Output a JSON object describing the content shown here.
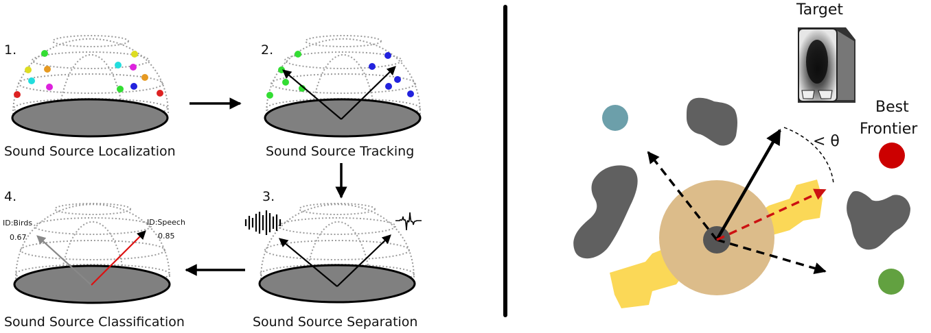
{
  "left_panel": {
    "step1": {
      "number": "1.",
      "caption": "Sound Source Localization"
    },
    "step2": {
      "number": "2.",
      "caption": "Sound Source Tracking"
    },
    "step3": {
      "number": "3.",
      "caption": "Sound Source Separation"
    },
    "step4": {
      "number": "4.",
      "caption": "Sound Source Classification",
      "label_birds": "ID:Birds",
      "value_birds": "0.67",
      "label_speech": "ID:Speech",
      "value_speech": "0.85"
    }
  },
  "right_panel": {
    "target_label": "Target",
    "frontier_label_line1": "Best",
    "frontier_label_line2": "Frontier",
    "angle_label": "< θ"
  },
  "colors": {
    "dome_disc": "#808080",
    "obstacle": "#606060",
    "robot_base": "#dcbc8a",
    "robot_arm": "#fbd857",
    "frontier_red": "#cc0000",
    "frontier_blue": "#6c9faa",
    "frontier_green": "#62a140",
    "arrow_red": "#cc1111"
  },
  "icons": [
    "waveform-icon",
    "speaker-icon"
  ]
}
